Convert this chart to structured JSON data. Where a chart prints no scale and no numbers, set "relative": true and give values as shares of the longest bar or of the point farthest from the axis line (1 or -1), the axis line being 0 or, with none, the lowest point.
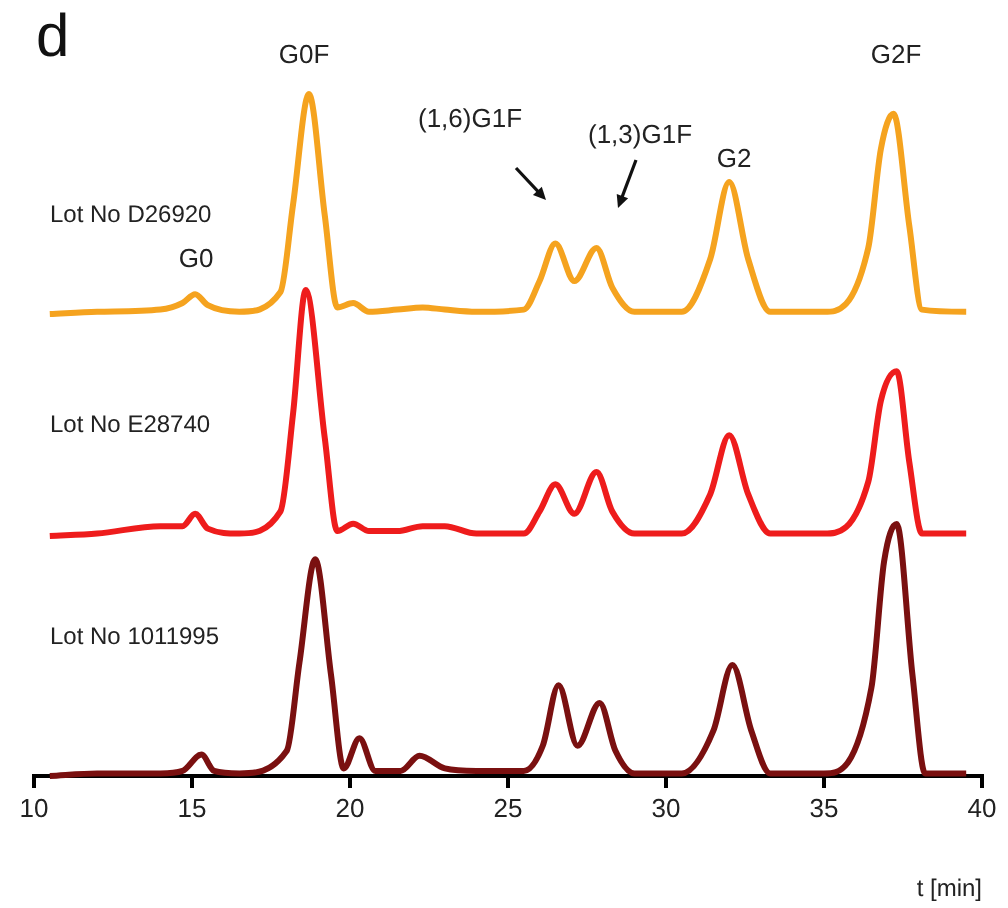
{
  "chart_data": [
    {
      "type": "line",
      "title": "d",
      "relative": true,
      "xlim": [
        10,
        40
      ],
      "tick_labels": false,
      "grid": false,
      "legend": false,
      "marker": "none",
      "line_style": "solid",
      "x": [
        10.5,
        12,
        14,
        14.7,
        15.1,
        15.5,
        16.5,
        17.8,
        18.2,
        18.7,
        19.2,
        19.6,
        20.1,
        20.6,
        21.5,
        22.3,
        23,
        24,
        25.5,
        26,
        26.5,
        27.1,
        27.8,
        28.3,
        29,
        30.5,
        31.4,
        32,
        32.6,
        33.3,
        35,
        36.4,
        36.8,
        37.2,
        37.7,
        38.1,
        39.5
      ],
      "series": [
        {
          "color": "#f5a31f",
          "values": [
            0,
            0.01,
            0.02,
            0.05,
            0.09,
            0.04,
            0.01,
            0.1,
            0.5,
            1,
            0.45,
            0.03,
            0.05,
            0.01,
            0.02,
            0.03,
            0.02,
            0.01,
            0.02,
            0.15,
            0.32,
            0.15,
            0.3,
            0.12,
            0.01,
            0.01,
            0.25,
            0.6,
            0.25,
            0.01,
            0.01,
            0.3,
            0.75,
            0.91,
            0.4,
            0.02,
            0.01
          ]
        }
      ],
      "annotations": [
        "Lot No D26920",
        "G0",
        "G0F",
        "(1,6)G1F",
        "(1,3)G1F",
        "G2",
        "G2F"
      ]
    },
    {
      "type": "line",
      "relative": true,
      "xlim": [
        10,
        40
      ],
      "tick_labels": false,
      "grid": false,
      "legend": false,
      "marker": "none",
      "line_style": "solid",
      "x": [
        10.5,
        12,
        14,
        14.7,
        15.1,
        15.5,
        16.5,
        17.8,
        18.2,
        18.6,
        19.2,
        19.6,
        20.1,
        20.6,
        21.5,
        22.3,
        23,
        24,
        25.5,
        26,
        26.5,
        27.1,
        27.8,
        28.3,
        29,
        30.5,
        31.4,
        32,
        32.6,
        33.3,
        35,
        36.4,
        36.8,
        37.3,
        37.7,
        38.1,
        39.5
      ],
      "series": [
        {
          "color": "#ee1c1c",
          "values": [
            0,
            0.01,
            0.04,
            0.04,
            0.09,
            0.03,
            0.01,
            0.1,
            0.5,
            1,
            0.4,
            0.02,
            0.05,
            0.02,
            0.02,
            0.04,
            0.04,
            0.01,
            0.01,
            0.1,
            0.21,
            0.09,
            0.26,
            0.1,
            0.01,
            0.01,
            0.17,
            0.41,
            0.17,
            0.01,
            0.01,
            0.22,
            0.55,
            0.67,
            0.3,
            0.01,
            0.01
          ]
        }
      ],
      "annotations": [
        "Lot No E28740"
      ]
    },
    {
      "type": "line",
      "relative": true,
      "xlim": [
        10,
        40
      ],
      "xticks": [
        10,
        15,
        20,
        25,
        30,
        35,
        40
      ],
      "xlabel": "t [min]",
      "grid": false,
      "legend": false,
      "marker": "none",
      "line_style": "solid",
      "tick_labels": "x",
      "x": [
        10.5,
        12,
        14,
        14.7,
        15.3,
        15.7,
        16.5,
        18,
        18.4,
        18.9,
        19.4,
        19.8,
        20.3,
        20.8,
        21.6,
        22.2,
        23,
        24,
        25.5,
        26.1,
        26.6,
        27.2,
        27.9,
        28.4,
        29,
        30.5,
        31.5,
        32.1,
        32.7,
        33.3,
        35,
        36.5,
        36.9,
        37.3,
        37.8,
        38.2,
        39.5
      ],
      "series": [
        {
          "color": "#7a1010",
          "values": [
            0,
            0.01,
            0.01,
            0.02,
            0.085,
            0.02,
            0.01,
            0.1,
            0.45,
            0.86,
            0.4,
            0.03,
            0.15,
            0.02,
            0.02,
            0.08,
            0.03,
            0.02,
            0.02,
            0.12,
            0.36,
            0.12,
            0.29,
            0.1,
            0.01,
            0.01,
            0.18,
            0.44,
            0.18,
            0.01,
            0.01,
            0.35,
            0.85,
            1,
            0.4,
            0.01,
            0.01
          ]
        }
      ],
      "annotations": [
        "Lot No 1011995"
      ]
    }
  ]
}
